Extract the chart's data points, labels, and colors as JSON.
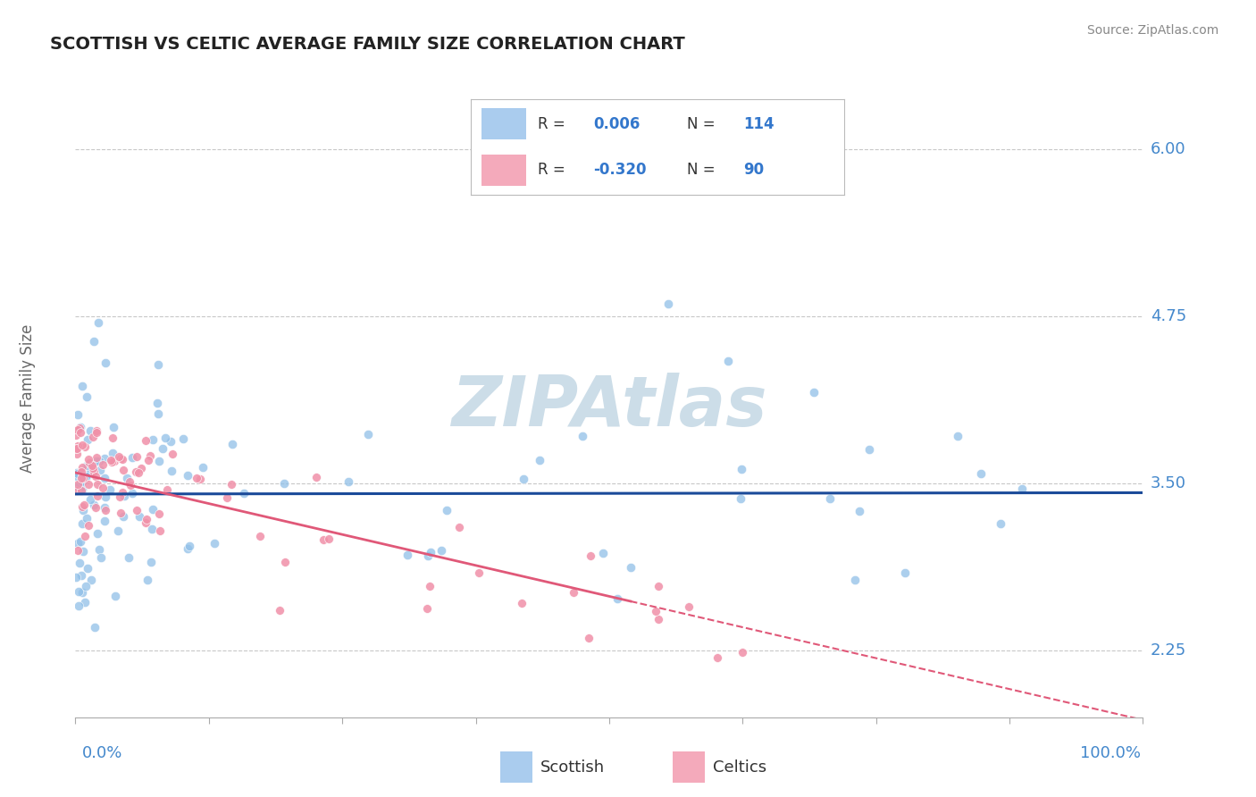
{
  "title": "SCOTTISH VS CELTIC AVERAGE FAMILY SIZE CORRELATION CHART",
  "source": "Source: ZipAtlas.com",
  "ylabel": "Average Family Size",
  "yticks": [
    2.25,
    3.5,
    4.75,
    6.0
  ],
  "xlim": [
    0,
    1
  ],
  "ylim": [
    1.75,
    6.4
  ],
  "scatter_blue_color": "#90c0e8",
  "scatter_pink_color": "#f090a8",
  "regression_blue_color": "#1a4a99",
  "regression_pink_color": "#e05878",
  "grid_color": "#c8c8c8",
  "bg_color": "#ffffff",
  "title_color": "#222222",
  "axis_tick_color": "#4488cc",
  "ylabel_color": "#666666",
  "watermark": "ZIPAtlas",
  "watermark_color": "#ccdde8",
  "blue_intercept": 3.42,
  "blue_slope": 0.01,
  "pink_intercept": 3.58,
  "pink_slope": -1.85,
  "seed_blue": 42,
  "seed_pink": 99,
  "n_blue": 114,
  "n_pink": 90,
  "legend_r_blue": "0.006",
  "legend_n_blue": "114",
  "legend_r_pink": "-0.320",
  "legend_n_pink": "90",
  "legend_blue_color": "#aaccee",
  "legend_pink_color": "#f4aabb",
  "legend_text_color": "#333333",
  "legend_value_color": "#3377cc",
  "bottom_legend_blue": "#aaccee",
  "bottom_legend_pink": "#f4aabb",
  "source_color": "#888888"
}
